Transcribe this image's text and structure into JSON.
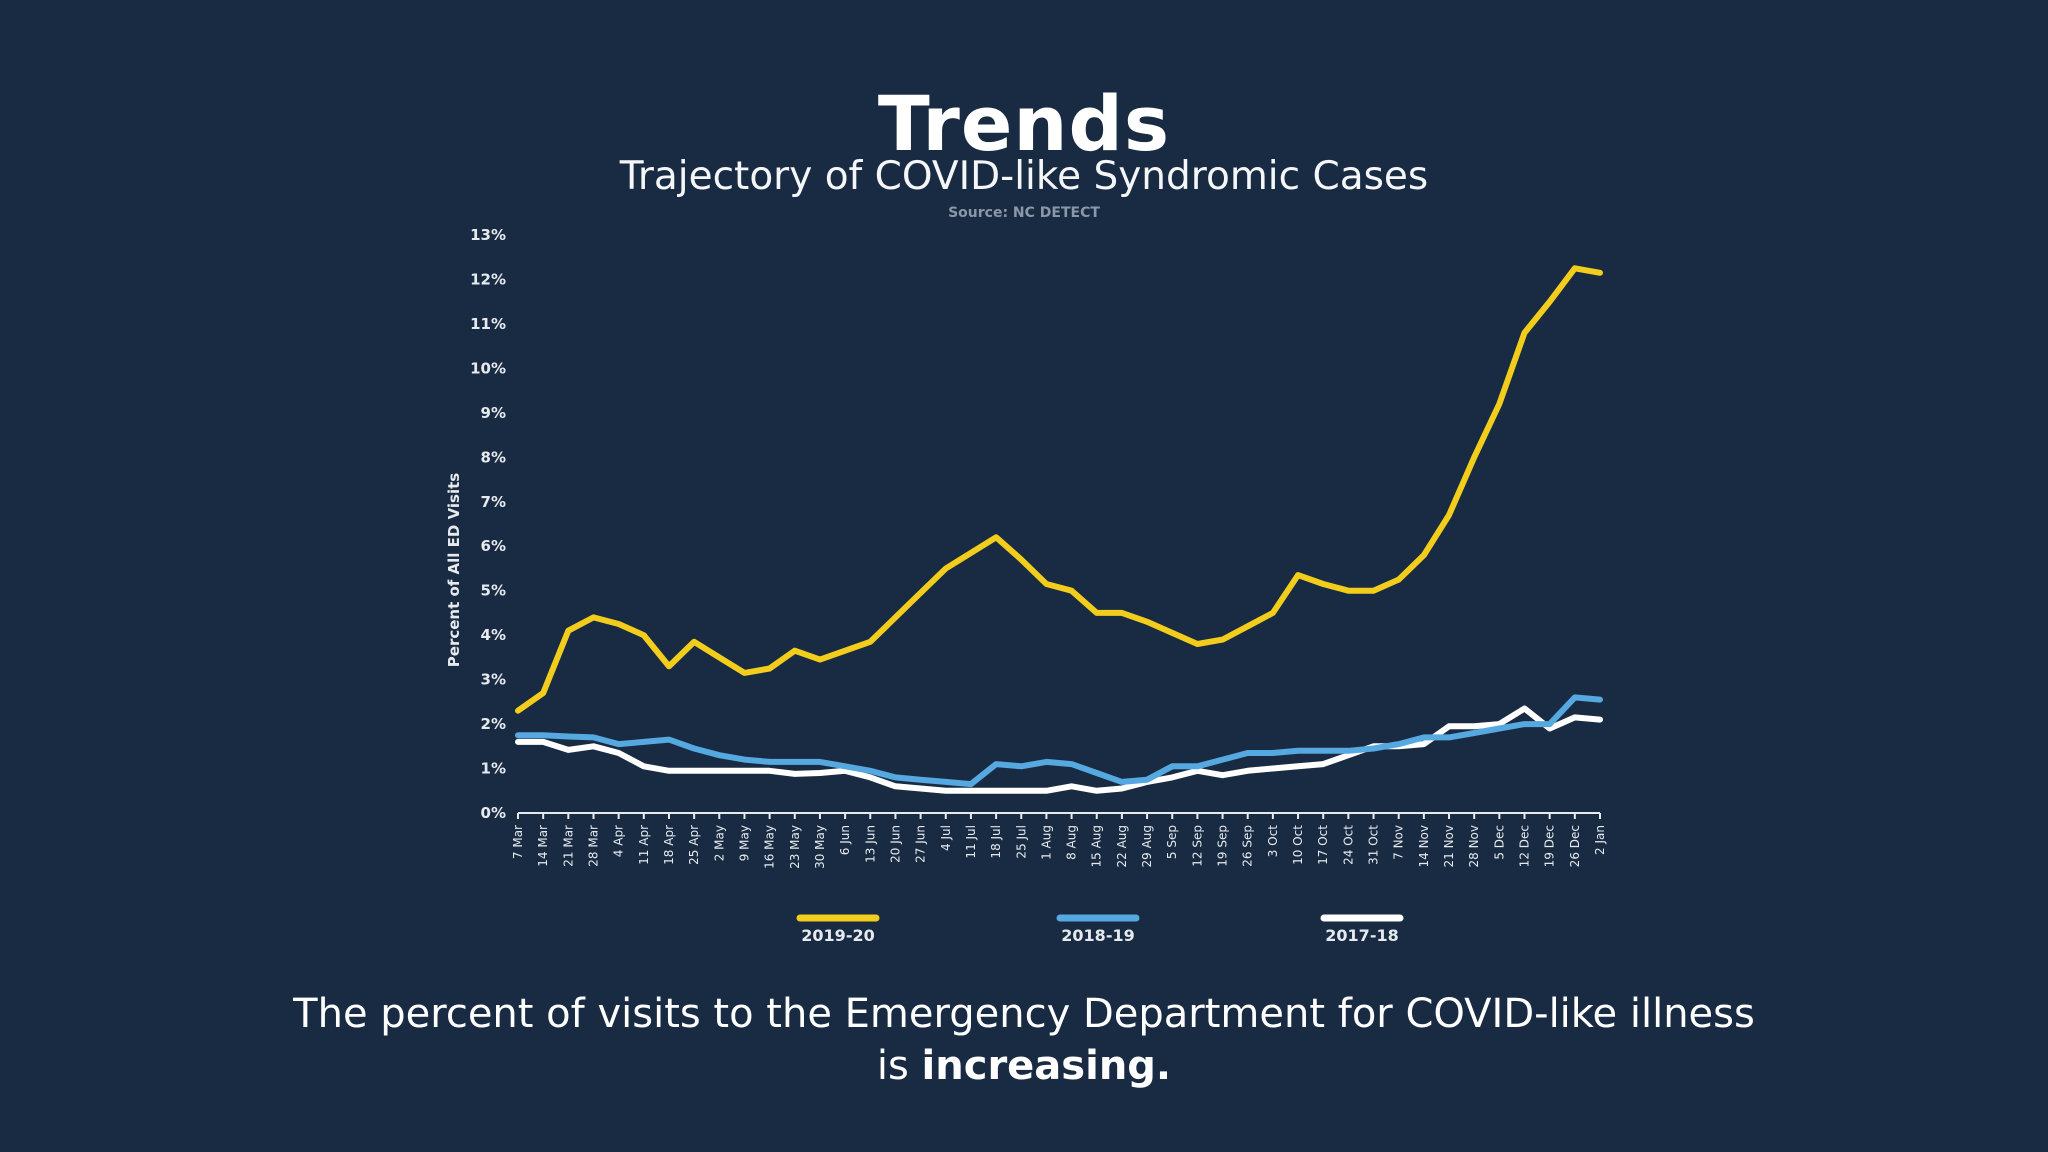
{
  "header": {
    "title": "Trends",
    "subtitle": "Trajectory of COVID-like Syndromic Cases",
    "source": "Source: NC DETECT"
  },
  "caption": {
    "line1": "The percent of visits to the Emergency Department for COVID-like illness",
    "line2_prefix": "is ",
    "line2_bold": "increasing."
  },
  "chart_data": {
    "type": "line",
    "title": "",
    "xlabel": "",
    "ylabel": "Percent of All ED Visits",
    "ylim": [
      0,
      13
    ],
    "yticks": [
      "0%",
      "1%",
      "2%",
      "3%",
      "4%",
      "5%",
      "6%",
      "7%",
      "8%",
      "9%",
      "10%",
      "11%",
      "12%",
      "13%"
    ],
    "grid": false,
    "legend_position": "bottom",
    "categories": [
      "7 Mar",
      "14 Mar",
      "21 Mar",
      "28 Mar",
      "4 Apr",
      "11 Apr",
      "18 Apr",
      "25 Apr",
      "2 May",
      "9 May",
      "16 May",
      "23 May",
      "30 May",
      "6 Jun",
      "13 Jun",
      "20 Jun",
      "27 Jun",
      "4 Jul",
      "11 Jul",
      "18 Jul",
      "25 Jul",
      "1 Aug",
      "8 Aug",
      "15 Aug",
      "22 Aug",
      "29 Aug",
      "5 Sep",
      "12 Sep",
      "19 Sep",
      "26 Sep",
      "3 Oct",
      "10 Oct",
      "17 Oct",
      "24 Oct",
      "31 Oct",
      "7 Nov",
      "14 Nov",
      "21 Nov",
      "28 Nov",
      "5 Dec",
      "12 Dec",
      "19 Dec",
      "26 Dec",
      "2 Jan"
    ],
    "series": [
      {
        "name": "2019-20",
        "color": "#f2cd1c",
        "values": [
          2.3,
          2.7,
          4.1,
          4.4,
          4.25,
          4.0,
          3.3,
          3.85,
          3.5,
          3.15,
          3.25,
          3.65,
          3.45,
          3.65,
          3.85,
          4.4,
          4.95,
          5.5,
          5.85,
          6.2,
          5.7,
          5.15,
          5.0,
          4.5,
          4.5,
          4.3,
          4.05,
          3.8,
          3.9,
          4.2,
          4.5,
          5.35,
          5.15,
          5.0,
          5.0,
          5.25,
          5.8,
          6.7,
          8.0,
          9.2,
          10.8,
          11.5,
          12.25,
          12.15
        ]
      },
      {
        "name": "2018-19",
        "color": "#55a8e0",
        "values": [
          1.75,
          1.75,
          1.72,
          1.7,
          1.55,
          1.6,
          1.65,
          1.45,
          1.3,
          1.2,
          1.15,
          1.15,
          1.15,
          1.05,
          0.95,
          0.8,
          0.75,
          0.7,
          0.65,
          1.1,
          1.05,
          1.15,
          1.1,
          0.9,
          0.7,
          0.75,
          1.05,
          1.05,
          1.2,
          1.35,
          1.35,
          1.4,
          1.4,
          1.4,
          1.45,
          1.55,
          1.7,
          1.7,
          1.8,
          1.9,
          2.0,
          2.0,
          2.6,
          2.55
        ]
      },
      {
        "name": "2017-18",
        "color": "#ffffff",
        "values": [
          1.6,
          1.6,
          1.42,
          1.5,
          1.35,
          1.05,
          0.95,
          0.95,
          0.95,
          0.95,
          0.95,
          0.88,
          0.9,
          0.95,
          0.8,
          0.6,
          0.55,
          0.5,
          0.5,
          0.5,
          0.5,
          0.5,
          0.6,
          0.5,
          0.55,
          0.7,
          0.8,
          0.95,
          0.85,
          0.95,
          1.0,
          1.05,
          1.1,
          1.3,
          1.5,
          1.5,
          1.55,
          1.95,
          1.95,
          2.0,
          2.35,
          1.9,
          2.15,
          2.1
        ]
      }
    ]
  }
}
